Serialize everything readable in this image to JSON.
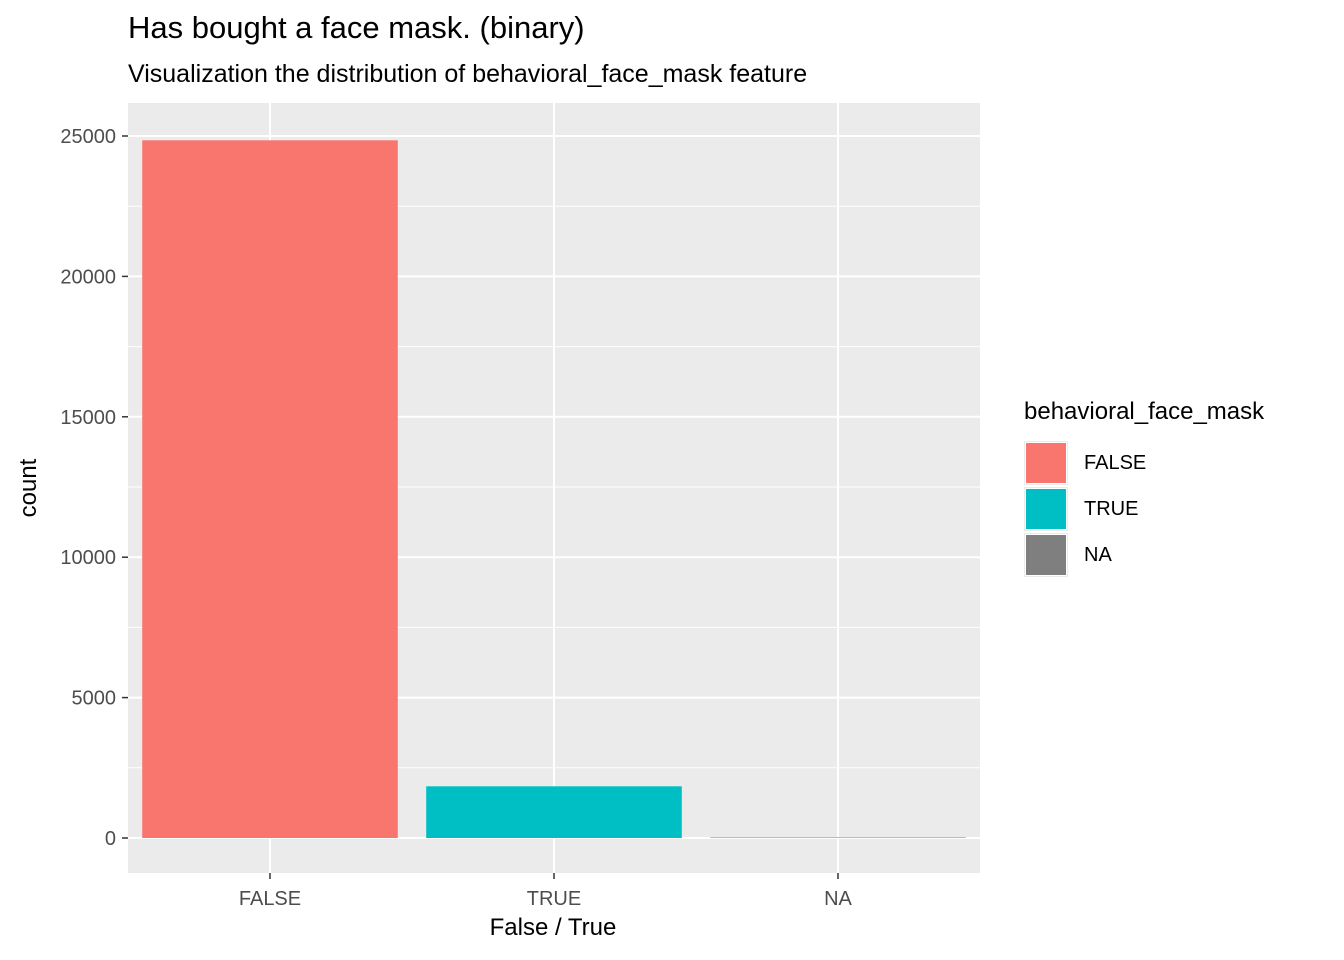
{
  "chart_data": {
    "type": "bar",
    "title": "Has bought a face mask. (binary)",
    "subtitle": "Visualization the distribution of behavioral_face_mask feature",
    "xlabel": "False / True",
    "ylabel": "count",
    "categories": [
      "FALSE",
      "TRUE",
      "NA"
    ],
    "values": [
      24847,
      1841,
      19
    ],
    "colors": [
      "#F8766D",
      "#00BFC4",
      "#7F7F7F"
    ],
    "ylim": [
      0,
      26100
    ],
    "yticks": [
      0,
      5000,
      10000,
      15000,
      20000,
      25000
    ],
    "grid": true,
    "legend": {
      "title": "behavioral_face_mask",
      "placement": "right",
      "items": [
        {
          "label": "FALSE",
          "color": "#F8766D"
        },
        {
          "label": "TRUE",
          "color": "#00BFC4"
        },
        {
          "label": "NA",
          "color": "#7F7F7F"
        }
      ]
    }
  }
}
